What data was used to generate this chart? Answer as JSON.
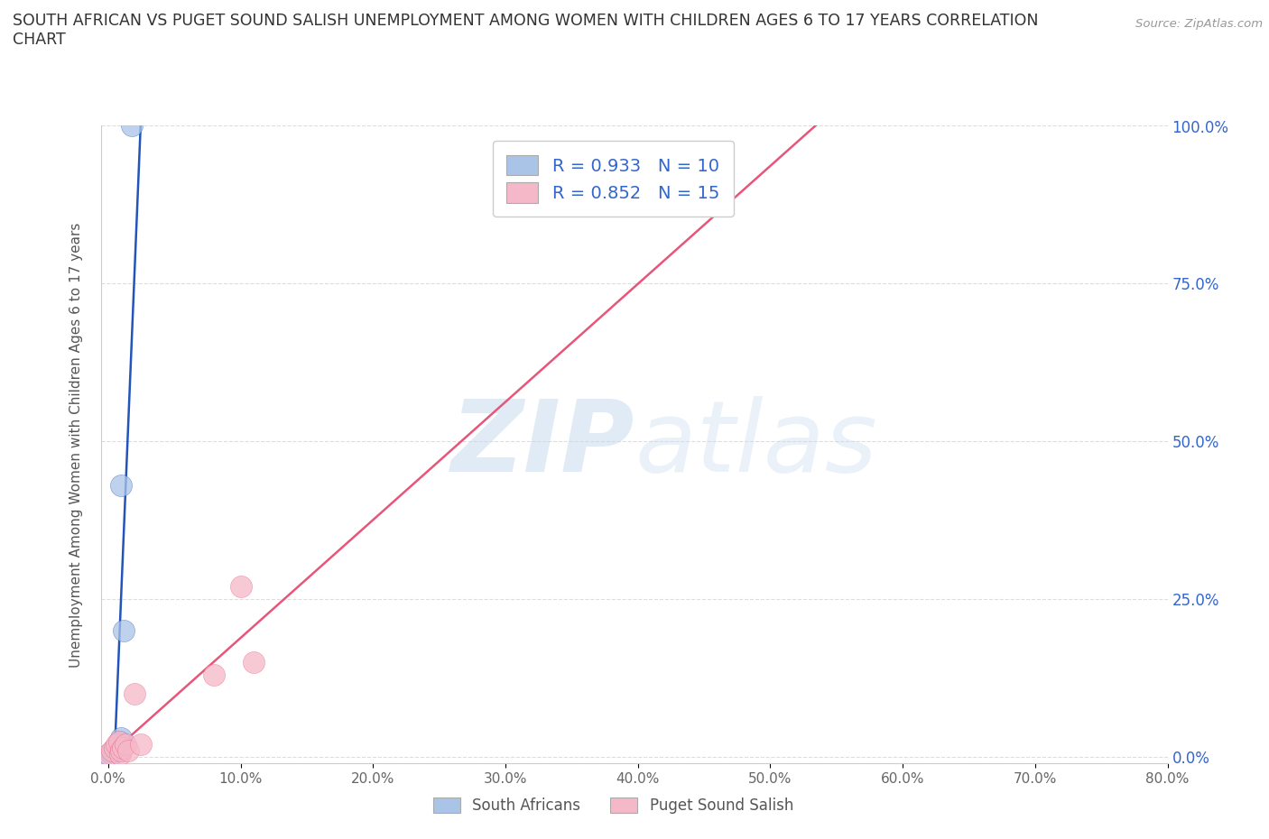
{
  "title_line1": "SOUTH AFRICAN VS PUGET SOUND SALISH UNEMPLOYMENT AMONG WOMEN WITH CHILDREN AGES 6 TO 17 YEARS CORRELATION",
  "title_line2": "CHART",
  "source": "Source: ZipAtlas.com",
  "ylabel": "Unemployment Among Women with Children Ages 6 to 17 years",
  "xlabel": "",
  "xlim": [
    -0.005,
    0.8
  ],
  "ylim": [
    -0.01,
    1.0
  ],
  "xticks": [
    0.0,
    0.1,
    0.2,
    0.3,
    0.4,
    0.5,
    0.6,
    0.7,
    0.8
  ],
  "xticklabels": [
    "0.0%",
    "10.0%",
    "20.0%",
    "30.0%",
    "40.0%",
    "50.0%",
    "60.0%",
    "70.0%",
    "80.0%"
  ],
  "yticks": [
    0.0,
    0.25,
    0.5,
    0.75,
    1.0
  ],
  "yticklabels": [
    "0.0%",
    "25.0%",
    "50.0%",
    "75.0%",
    "100.0%"
  ],
  "blue_color": "#aac4e8",
  "pink_color": "#f5b8c8",
  "blue_line_color": "#2255bb",
  "pink_line_color": "#e8557a",
  "R_blue": 0.933,
  "N_blue": 10,
  "R_pink": 0.852,
  "N_pink": 15,
  "blue_x": [
    0.0,
    0.003,
    0.005,
    0.007,
    0.008,
    0.009,
    0.01,
    0.01,
    0.012,
    0.018
  ],
  "blue_y": [
    0.0,
    0.005,
    0.01,
    0.015,
    0.02,
    0.025,
    0.03,
    0.43,
    0.2,
    1.0
  ],
  "pink_x": [
    0.0,
    0.003,
    0.005,
    0.006,
    0.008,
    0.009,
    0.01,
    0.011,
    0.013,
    0.015,
    0.02,
    0.025,
    0.08,
    0.1,
    0.11
  ],
  "pink_y": [
    0.005,
    0.01,
    0.015,
    0.02,
    0.025,
    0.005,
    0.01,
    0.015,
    0.02,
    0.01,
    0.1,
    0.02,
    0.13,
    0.27,
    0.15
  ],
  "watermark_zip": "ZIP",
  "watermark_atlas": "atlas",
  "legend_blue_label": "South Africans",
  "legend_pink_label": "Puget Sound Salish",
  "background_color": "#ffffff",
  "grid_color": "#dddddd"
}
